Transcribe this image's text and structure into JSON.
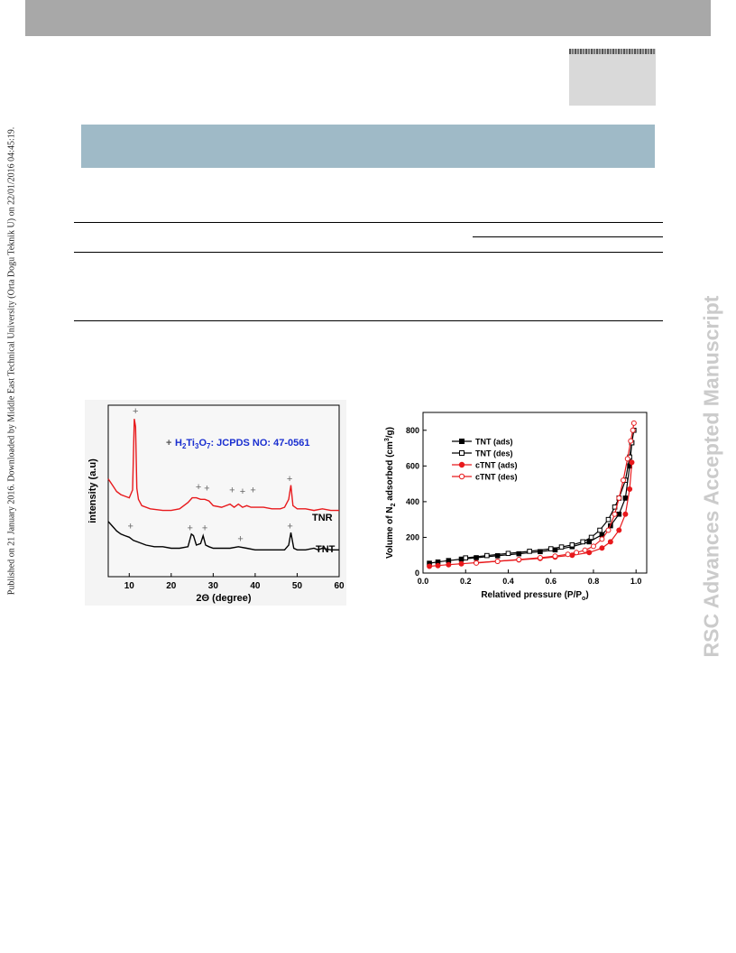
{
  "sidebar": {
    "published_line": "Published on 21 January 2016. Downloaded by Middle East Technical University (Orta Dogu Teknik U) on 22/01/2016 04:45:19.",
    "watermark": "RSC Advances Accepted Manuscript"
  },
  "colors": {
    "top_bar": "#a8a8a8",
    "logo_box": "#d9d9d9",
    "blue_band": "#9fbac7",
    "watermark": "#cbcbcb",
    "series_black": "#000000",
    "series_red": "#e8191c",
    "annotation_blue": "#1a2fd0"
  },
  "chart_data": [
    {
      "type": "line",
      "annotation": "+: H2Ti3O7: JCPDS NO: 47-0561",
      "annotation_parts": {
        "marker": "+",
        "h": "H",
        "sub1": "2",
        "ti": "Ti",
        "sub2": "3",
        "o": "O",
        "sub3": "7",
        "rest": ": JCPDS NO: 47-0561"
      },
      "xlabel": "2Θ  (degree)",
      "ylabel": "intensity (a.u)",
      "xlim": [
        5,
        60
      ],
      "xticks": [
        "10",
        "20",
        "30",
        "40",
        "50",
        "60"
      ],
      "series": [
        {
          "name": "TNR",
          "color": "#e8191c",
          "x": [
            5,
            6,
            7,
            8,
            9,
            10,
            10.8,
            11.2,
            11.5,
            11.8,
            12.2,
            13,
            15,
            18,
            20,
            22,
            24,
            25,
            26,
            27,
            28,
            29,
            30,
            32,
            34,
            35,
            36,
            37,
            38,
            39,
            40,
            42,
            44,
            46,
            47,
            48,
            48.5,
            49,
            50,
            52,
            54,
            56,
            58,
            60
          ],
          "y": [
            0.62,
            0.58,
            0.54,
            0.52,
            0.51,
            0.5,
            0.55,
            1.0,
            0.95,
            0.56,
            0.49,
            0.45,
            0.43,
            0.42,
            0.42,
            0.43,
            0.47,
            0.5,
            0.5,
            0.49,
            0.49,
            0.48,
            0.45,
            0.44,
            0.46,
            0.44,
            0.46,
            0.44,
            0.45,
            0.44,
            0.44,
            0.44,
            0.43,
            0.43,
            0.44,
            0.49,
            0.58,
            0.45,
            0.43,
            0.43,
            0.42,
            0.43,
            0.42,
            0.42
          ]
        },
        {
          "name": "TNT",
          "color": "#000000",
          "x": [
            5,
            6,
            7,
            8,
            9,
            10,
            11,
            12,
            14,
            16,
            18,
            20,
            22,
            24,
            24.8,
            25.3,
            26,
            27,
            27.6,
            28.2,
            29,
            30,
            32,
            34,
            36,
            38,
            40,
            44,
            47,
            48,
            48.5,
            49.2,
            50,
            52,
            54,
            55,
            56,
            58,
            60
          ],
          "y": [
            0.35,
            0.32,
            0.29,
            0.27,
            0.26,
            0.25,
            0.23,
            0.22,
            0.2,
            0.19,
            0.19,
            0.18,
            0.18,
            0.19,
            0.27,
            0.26,
            0.2,
            0.21,
            0.26,
            0.2,
            0.19,
            0.18,
            0.18,
            0.18,
            0.19,
            0.18,
            0.17,
            0.17,
            0.17,
            0.2,
            0.28,
            0.18,
            0.17,
            0.17,
            0.18,
            0.17,
            0.18,
            0.17,
            0.17
          ]
        }
      ],
      "markers": [
        {
          "x": 11.5,
          "y": 1.03
        },
        {
          "x": 26.5,
          "y": 0.55
        },
        {
          "x": 28.5,
          "y": 0.54
        },
        {
          "x": 34.5,
          "y": 0.53
        },
        {
          "x": 37,
          "y": 0.52
        },
        {
          "x": 39.5,
          "y": 0.53
        },
        {
          "x": 48.2,
          "y": 0.6
        },
        {
          "x": 10.3,
          "y": 0.3
        },
        {
          "x": 24.5,
          "y": 0.29
        },
        {
          "x": 28,
          "y": 0.29
        },
        {
          "x": 36.5,
          "y": 0.22
        },
        {
          "x": 48.3,
          "y": 0.3
        }
      ]
    },
    {
      "type": "line",
      "xlabel": "Relatived pressure (P/P",
      "xlabel_sub": "o",
      "xlabel_end": ")",
      "ylabel_parts": {
        "a": "Volume of N",
        "sub": "2",
        "b": " adsorbed (cm",
        "sup": "3",
        "c": "/g)"
      },
      "xlim": [
        0,
        1.05
      ],
      "ylim": [
        0,
        900
      ],
      "xticks": [
        "0.0",
        "0.2",
        "0.4",
        "0.6",
        "0.8",
        "1.0"
      ],
      "yticks": [
        "0",
        "200",
        "400",
        "600",
        "800"
      ],
      "legend_position": "top-left",
      "series": [
        {
          "name": "TNT (ads)",
          "color": "#000000",
          "filled": true,
          "marker": "square",
          "x": [
            0.03,
            0.07,
            0.12,
            0.18,
            0.25,
            0.35,
            0.45,
            0.55,
            0.62,
            0.7,
            0.78,
            0.84,
            0.88,
            0.92,
            0.95,
            0.97,
            0.98
          ],
          "y": [
            55,
            62,
            70,
            78,
            86,
            97,
            108,
            120,
            130,
            148,
            175,
            215,
            265,
            330,
            420,
            600,
            730
          ]
        },
        {
          "name": "TNT (des)",
          "color": "#000000",
          "filled": false,
          "marker": "square",
          "x": [
            0.99,
            0.98,
            0.97,
            0.95,
            0.92,
            0.9,
            0.87,
            0.83,
            0.79,
            0.75,
            0.7,
            0.65,
            0.6,
            0.5,
            0.4,
            0.3,
            0.2
          ],
          "y": [
            800,
            730,
            650,
            520,
            420,
            370,
            300,
            240,
            200,
            175,
            158,
            146,
            136,
            122,
            110,
            98,
            85
          ]
        },
        {
          "name": "cTNT (ads)",
          "color": "#e8191c",
          "filled": true,
          "marker": "circle",
          "x": [
            0.03,
            0.07,
            0.12,
            0.18,
            0.25,
            0.35,
            0.45,
            0.55,
            0.62,
            0.7,
            0.78,
            0.84,
            0.88,
            0.92,
            0.95,
            0.97,
            0.98
          ],
          "y": [
            38,
            42,
            47,
            52,
            58,
            66,
            74,
            82,
            90,
            100,
            115,
            140,
            175,
            240,
            330,
            470,
            620
          ]
        },
        {
          "name": "cTNT (des)",
          "color": "#e8191c",
          "filled": false,
          "marker": "circle",
          "x": [
            0.99,
            0.985,
            0.975,
            0.96,
            0.94,
            0.92,
            0.9,
            0.87,
            0.84,
            0.8,
            0.76,
            0.72,
            0.68,
            0.62,
            0.55,
            0.45,
            0.35,
            0.25
          ],
          "y": [
            840,
            800,
            740,
            640,
            520,
            420,
            330,
            240,
            190,
            150,
            128,
            115,
            105,
            95,
            86,
            76,
            66,
            56
          ]
        }
      ]
    }
  ]
}
